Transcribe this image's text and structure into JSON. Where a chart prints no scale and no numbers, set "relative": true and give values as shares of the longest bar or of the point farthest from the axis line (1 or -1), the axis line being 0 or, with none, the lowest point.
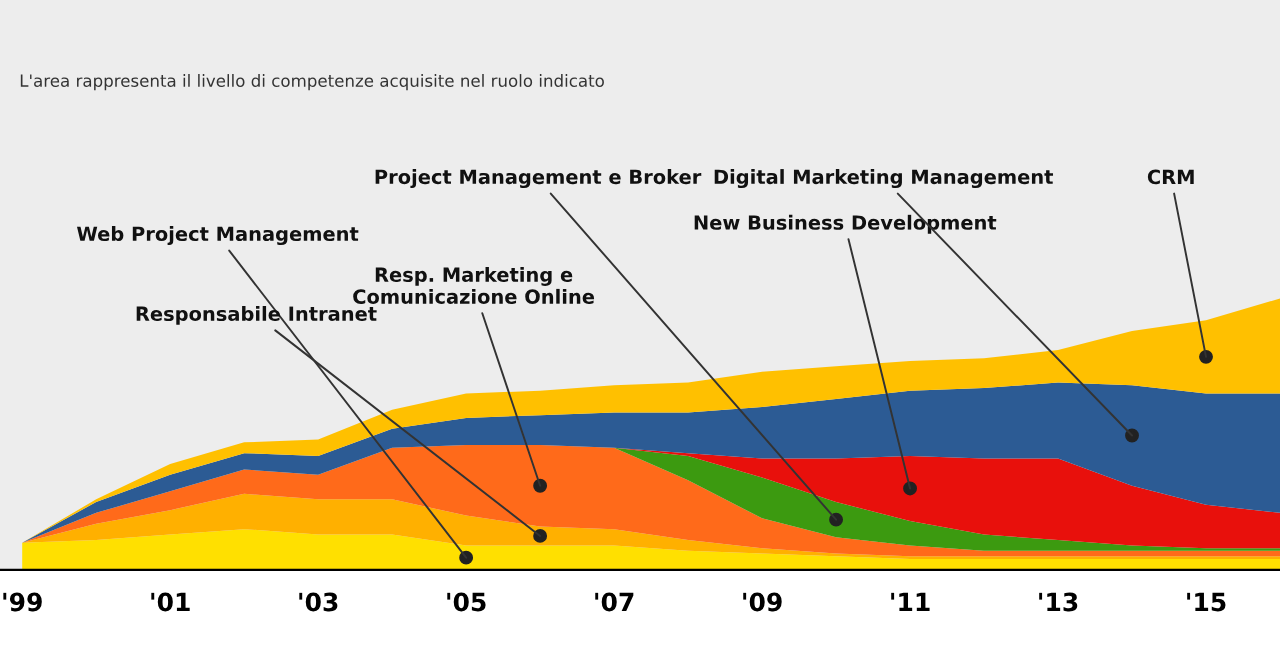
{
  "chart_data": {
    "type": "area",
    "stacked": true,
    "relative": true,
    "annotations": [
      "L'area rappresenta il livello di competenze acquisite nel ruolo indicato"
    ],
    "x": [
      1999,
      2000,
      2001,
      2002,
      2003,
      2004,
      2005,
      2006,
      2007,
      2008,
      2009,
      2010,
      2011,
      2012,
      2013,
      2014,
      2015,
      2016
    ],
    "xlim": [
      1998.7,
      2016
    ],
    "xticks": [
      {
        "value": 1999,
        "label": "'99"
      },
      {
        "value": 2001,
        "label": "'01"
      },
      {
        "value": 2003,
        "label": "'03"
      },
      {
        "value": 2005,
        "label": "'05"
      },
      {
        "value": 2007,
        "label": "'07"
      },
      {
        "value": 2009,
        "label": "'09"
      },
      {
        "value": 2011,
        "label": "'11"
      },
      {
        "value": 2013,
        "label": "'13"
      },
      {
        "value": 2015,
        "label": "'15"
      }
    ],
    "series": [
      {
        "name": "Web Project Management",
        "color": "#ffe000",
        "values": [
          0.1,
          0.11,
          0.13,
          0.15,
          0.13,
          0.13,
          0.09,
          0.09,
          0.09,
          0.07,
          0.06,
          0.05,
          0.04,
          0.04,
          0.04,
          0.04,
          0.04,
          0.04
        ]
      },
      {
        "name": "Responsabile Intranet",
        "color": "#ffb000",
        "values": [
          0,
          0.06,
          0.09,
          0.13,
          0.13,
          0.13,
          0.11,
          0.07,
          0.06,
          0.04,
          0.02,
          0.01,
          0.01,
          0.01,
          0.01,
          0.01,
          0.01,
          0.01
        ]
      },
      {
        "name": "Resp. Marketing e\nComunicazione Online",
        "color": "#ff6a1a",
        "values": [
          0,
          0.04,
          0.07,
          0.09,
          0.09,
          0.19,
          0.26,
          0.3,
          0.3,
          0.22,
          0.11,
          0.06,
          0.04,
          0.02,
          0.02,
          0.02,
          0.02,
          0.02
        ]
      },
      {
        "name": "Project Management e Broker",
        "color": "#3c9a10",
        "values": [
          0,
          0,
          0,
          0,
          0,
          0,
          0,
          0,
          0,
          0.09,
          0.15,
          0.13,
          0.09,
          0.06,
          0.04,
          0.02,
          0.01,
          0.01
        ]
      },
      {
        "name": "New Business Development",
        "color": "#e8100c",
        "values": [
          0,
          0,
          0,
          0,
          0,
          0,
          0,
          0,
          0,
          0.01,
          0.07,
          0.16,
          0.24,
          0.28,
          0.3,
          0.22,
          0.16,
          0.13
        ]
      },
      {
        "name": "Digital Marketing Management",
        "color": "#2c5b94",
        "values": [
          0,
          0.04,
          0.06,
          0.06,
          0.07,
          0.07,
          0.1,
          0.11,
          0.13,
          0.15,
          0.19,
          0.22,
          0.24,
          0.26,
          0.28,
          0.37,
          0.41,
          0.44
        ]
      },
      {
        "name": "CRM",
        "color": "#ffc000",
        "values": [
          0,
          0.01,
          0.04,
          0.04,
          0.06,
          0.07,
          0.09,
          0.09,
          0.1,
          0.11,
          0.13,
          0.12,
          0.11,
          0.11,
          0.12,
          0.2,
          0.27,
          0.35
        ]
      }
    ]
  }
}
